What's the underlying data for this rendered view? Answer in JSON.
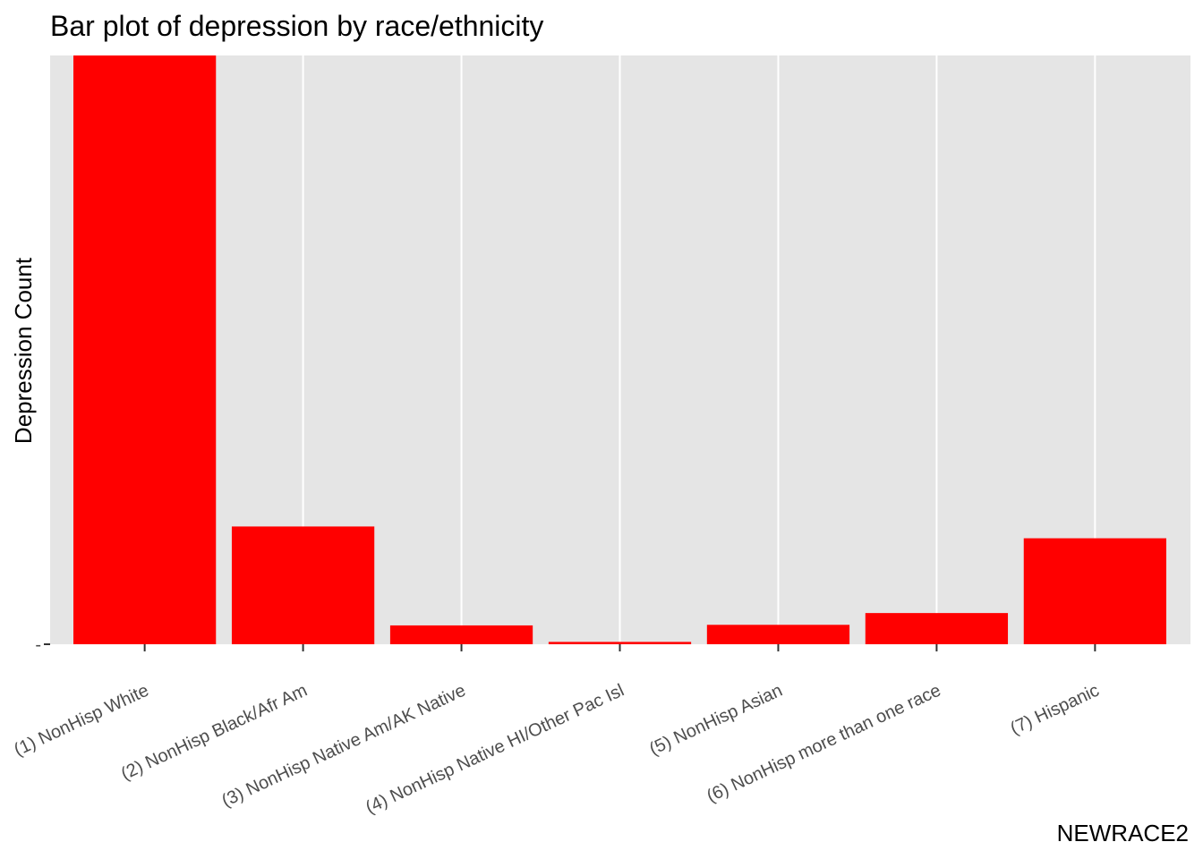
{
  "chart_data": {
    "type": "bar",
    "title": "Bar plot of depression by race/ethnicity",
    "xlabel": "NEWRACE2",
    "ylabel": "Depression Count",
    "categories": [
      "(1) NonHisp White",
      "(2) NonHisp Black/Afr Am",
      "(3) NonHisp Native Am/AK Native",
      "(4) NonHisp Native HI/Other Pac Isl",
      "(5) NonHisp Asian",
      "(6) NonHisp more than one race",
      "(7) Hispanic"
    ],
    "values": [
      100,
      20,
      3.2,
      0.4,
      3.3,
      5.3,
      18
    ],
    "ylim": [
      0,
      100
    ],
    "y_ticks": [
      "-"
    ],
    "grid": true,
    "panel_color": "#e5e5e5",
    "grid_color": "#ffffff",
    "bar_color": "#ff0000"
  }
}
